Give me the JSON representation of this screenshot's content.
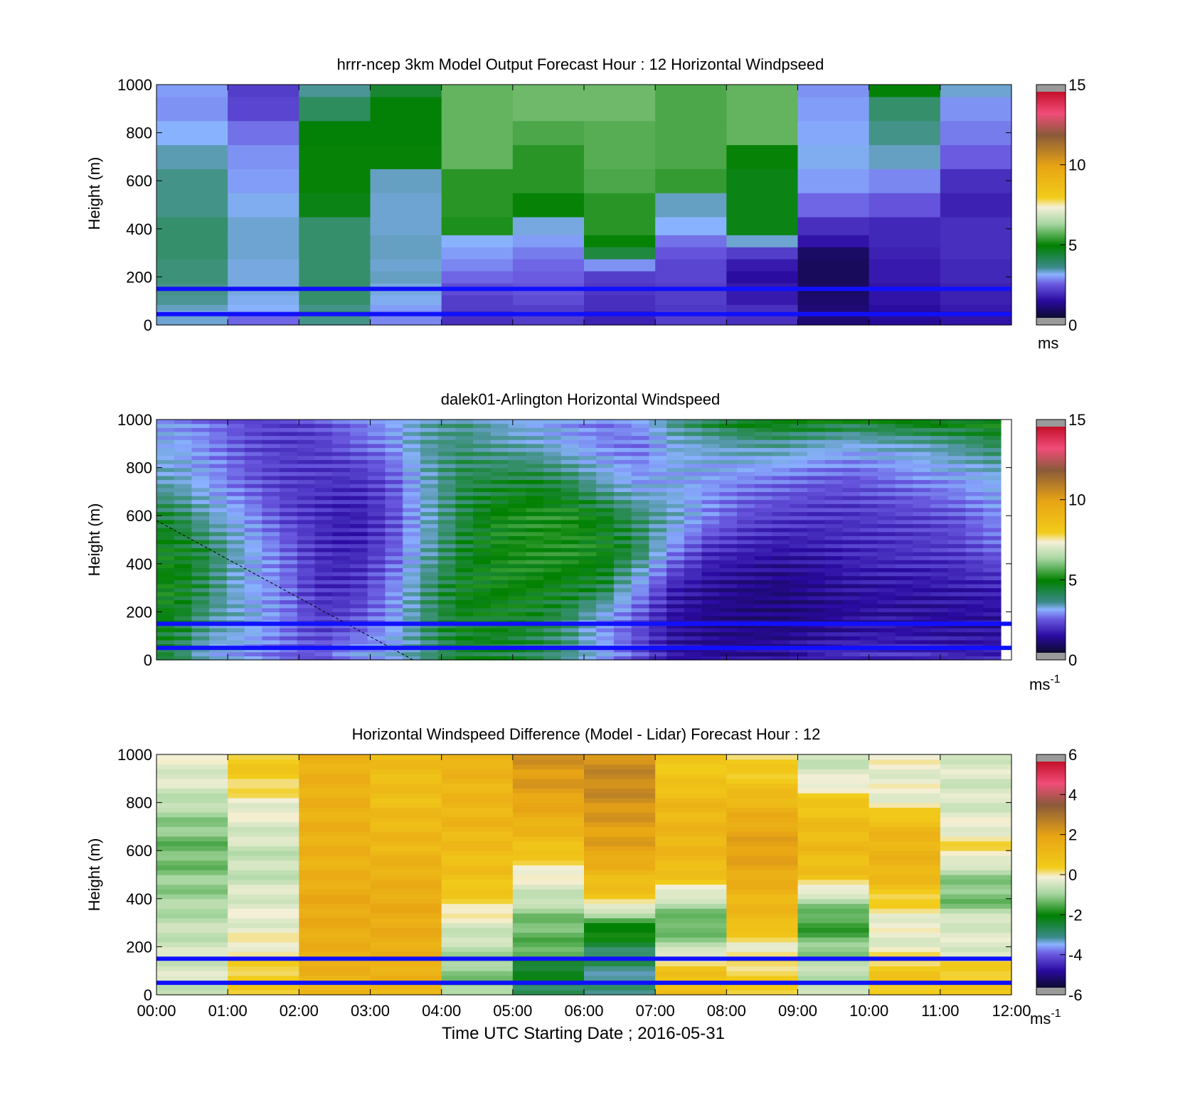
{
  "chart_data": [
    {
      "type": "heatmap",
      "title": "hrrr-ncep 3km Model Output   Forecast Hour : 12 Horizontal Windpseed",
      "ylabel": "Height (m)",
      "xlabel": "",
      "ylim": [
        0,
        1000
      ],
      "yticks": [
        "0",
        "200",
        "400",
        "600",
        "800",
        "1000"
      ],
      "x": [
        "00:00",
        "01:00",
        "02:00",
        "03:00",
        "04:00",
        "05:00",
        "06:00",
        "07:00",
        "08:00",
        "09:00",
        "10:00",
        "11:00"
      ],
      "y": [
        30,
        50,
        70,
        100,
        150,
        200,
        250,
        300,
        350,
        400,
        500,
        600,
        700,
        800,
        900,
        1000
      ],
      "z_units": "ms",
      "zlim": [
        0,
        15
      ],
      "colorbar_ticks": [
        "0",
        "5",
        "10",
        "15"
      ],
      "overlay_lines_y": [
        150,
        45
      ],
      "values": [
        [
          3.5,
          2.5,
          4.0,
          2.8,
          1.8,
          2.0,
          1.6,
          2.0,
          1.8,
          0.8,
          1.2,
          1.4
        ],
        [
          3.3,
          3.0,
          4.2,
          2.8,
          1.8,
          2.0,
          1.6,
          2.0,
          1.8,
          0.8,
          1.2,
          1.4
        ],
        [
          3.6,
          3.2,
          4.0,
          3.0,
          2.0,
          2.0,
          1.8,
          1.9,
          1.8,
          0.8,
          1.3,
          1.5
        ],
        [
          3.9,
          3.3,
          4.2,
          3.3,
          2.0,
          2.2,
          1.8,
          2.0,
          1.5,
          0.7,
          1.4,
          1.6
        ],
        [
          4.0,
          3.4,
          4.2,
          3.4,
          2.2,
          2.3,
          1.9,
          2.0,
          1.5,
          0.6,
          1.4,
          1.6
        ],
        [
          4.1,
          3.4,
          4.2,
          3.6,
          2.5,
          2.4,
          2.0,
          2.1,
          1.3,
          0.5,
          1.5,
          1.7
        ],
        [
          4.1,
          3.4,
          4.2,
          3.5,
          2.8,
          2.5,
          2.9,
          2.1,
          1.5,
          0.5,
          1.5,
          1.7
        ],
        [
          4.2,
          3.5,
          4.2,
          3.6,
          3.0,
          2.7,
          4.5,
          2.3,
          2.0,
          0.6,
          1.6,
          1.8
        ],
        [
          4.2,
          3.5,
          4.2,
          3.6,
          3.2,
          3.0,
          5.0,
          2.6,
          3.5,
          1.4,
          1.7,
          1.8
        ],
        [
          4.2,
          3.5,
          4.2,
          3.5,
          5.2,
          3.4,
          5.3,
          3.2,
          4.8,
          1.8,
          1.7,
          1.8
        ],
        [
          4.0,
          3.3,
          4.8,
          3.5,
          5.3,
          5.0,
          5.3,
          3.6,
          4.8,
          2.5,
          2.3,
          1.6
        ],
        [
          4.0,
          3.0,
          5.0,
          3.6,
          5.3,
          5.3,
          5.6,
          5.4,
          4.8,
          3.0,
          2.8,
          1.8
        ],
        [
          3.7,
          2.9,
          5.0,
          5.0,
          5.8,
          5.3,
          5.7,
          5.6,
          5.0,
          3.3,
          3.6,
          2.4
        ],
        [
          3.2,
          2.6,
          4.9,
          4.9,
          5.8,
          5.6,
          5.7,
          5.6,
          5.8,
          3.1,
          4.0,
          2.7
        ],
        [
          2.9,
          2.1,
          4.3,
          4.9,
          5.8,
          5.9,
          5.9,
          5.6,
          5.8,
          3.0,
          4.2,
          2.9
        ],
        [
          3.0,
          2.0,
          3.9,
          4.6,
          5.8,
          5.9,
          5.9,
          5.6,
          5.8,
          2.9,
          4.9,
          3.5
        ]
      ]
    },
    {
      "type": "heatmap",
      "title": "dalek01-Arlington  Horizontal Windspeed",
      "ylabel": "Height (m)",
      "xlabel": "",
      "ylim": [
        0,
        1000
      ],
      "yticks": [
        "0",
        "200",
        "400",
        "600",
        "800",
        "1000"
      ],
      "x_range_hours": [
        0,
        12
      ],
      "z_units": "ms",
      "z_units_exponent": "-1",
      "zlim": [
        0,
        15
      ],
      "colorbar_ticks": [
        "0",
        "5",
        "10",
        "15"
      ],
      "overlay_lines_y": [
        150,
        50
      ],
      "dashed_line": {
        "x_hours": [
          0,
          3.6
        ],
        "y": [
          580,
          0
        ]
      },
      "values": {
        "profile_times": [
          0.25,
          0.75,
          1.25,
          1.75,
          2.25,
          2.75,
          3.25,
          3.75,
          4.25,
          4.75,
          5.25,
          5.75,
          6.25,
          6.75,
          7.25,
          7.75,
          8.25,
          8.75,
          9.25,
          9.75,
          10.25,
          10.75,
          11.25,
          11.75
        ],
        "height_levels": [
          25,
          150,
          300,
          450,
          600,
          750,
          900,
          1000
        ],
        "speed": [
          [
            4.5,
            3.3,
            3.0,
            2.5,
            2.2,
            3.0,
            3.2,
            4.0,
            4.6,
            4.6,
            4.4,
            4.0,
            3.2,
            2.3,
            1.4,
            1.2,
            1.2,
            1.2,
            1.6,
            1.8,
            1.8,
            1.8,
            1.6,
            1.6
          ],
          [
            4.8,
            3.8,
            3.5,
            2.8,
            2.0,
            2.2,
            2.9,
            4.1,
            4.8,
            4.8,
            4.6,
            4.2,
            3.0,
            2.2,
            1.3,
            1.0,
            0.9,
            0.9,
            1.0,
            1.2,
            1.3,
            1.2,
            1.2,
            1.2
          ],
          [
            5.0,
            4.2,
            3.2,
            2.8,
            1.8,
            1.8,
            2.6,
            4.0,
            4.8,
            5.0,
            5.0,
            4.8,
            4.6,
            3.0,
            1.6,
            1.2,
            1.0,
            0.9,
            1.1,
            1.3,
            1.4,
            1.4,
            1.5,
            1.6
          ],
          [
            4.9,
            4.4,
            3.4,
            2.6,
            1.8,
            1.6,
            2.2,
            3.6,
            4.6,
            5.0,
            5.2,
            5.2,
            5.0,
            4.4,
            2.8,
            1.8,
            1.6,
            1.4,
            1.5,
            1.7,
            1.8,
            1.9,
            2.0,
            2.4
          ],
          [
            4.5,
            3.6,
            3.0,
            2.2,
            1.8,
            1.5,
            2.0,
            3.4,
            4.4,
            5.0,
            5.2,
            5.2,
            4.8,
            4.2,
            3.6,
            2.8,
            2.2,
            2.0,
            1.9,
            1.9,
            2.0,
            2.1,
            2.3,
            2.8
          ],
          [
            3.6,
            3.0,
            2.4,
            2.0,
            1.9,
            1.8,
            2.2,
            3.5,
            4.4,
            4.5,
            4.6,
            4.3,
            3.6,
            3.0,
            3.2,
            3.0,
            2.8,
            2.6,
            2.4,
            2.3,
            2.5,
            2.8,
            3.0,
            3.3
          ],
          [
            3.2,
            2.8,
            2.2,
            2.0,
            2.0,
            2.4,
            2.8,
            3.8,
            4.1,
            3.8,
            3.6,
            3.2,
            2.8,
            2.6,
            3.4,
            3.6,
            3.8,
            3.9,
            3.6,
            3.4,
            3.6,
            3.7,
            4.0,
            4.3
          ],
          [
            3.0,
            2.6,
            2.2,
            2.0,
            2.2,
            2.6,
            3.0,
            3.6,
            4.0,
            3.6,
            3.2,
            3.0,
            2.6,
            3.0,
            4.0,
            4.6,
            5.0,
            5.0,
            5.0,
            4.8,
            4.9,
            5.0,
            5.0,
            5.2
          ]
        ]
      }
    },
    {
      "type": "heatmap",
      "title": "Horizontal Windspeed Difference (Model - Lidar) Forecast Hour : 12",
      "ylabel": "Height (m)",
      "xlabel": "Time UTC  Starting Date ; 2016-05-31",
      "ylim": [
        0,
        1000
      ],
      "yticks": [
        "0",
        "200",
        "400",
        "600",
        "800",
        "1000"
      ],
      "xticks": [
        "00:00",
        "01:00",
        "02:00",
        "03:00",
        "04:00",
        "05:00",
        "06:00",
        "07:00",
        "08:00",
        "09:00",
        "10:00",
        "11:00",
        "12:00"
      ],
      "z_units": "ms",
      "z_units_exponent": "-1",
      "zlim": [
        -6,
        6
      ],
      "colorbar_ticks": [
        "-6",
        "-4",
        "-2",
        "0",
        "2",
        "4",
        "6"
      ],
      "overlay_lines_y": [
        150,
        50
      ],
      "values": {
        "hours": [
          "00:00",
          "01:00",
          "02:00",
          "03:00",
          "04:00",
          "05:00",
          "06:00",
          "07:00",
          "08:00",
          "09:00",
          "10:00",
          "11:00"
        ],
        "height_levels": [
          0,
          100,
          200,
          300,
          400,
          500,
          600,
          700,
          800,
          900,
          1000
        ],
        "diff": [
          [
            -0.8,
            0.3,
            1.0,
            1.2,
            -1.2,
            -2.6,
            -3.0,
            0.8,
            0.4,
            -0.9,
            0.4,
            0.3
          ],
          [
            -0.6,
            0.3,
            1.3,
            1.3,
            -1.4,
            -2.6,
            -3.0,
            0.6,
            0.2,
            -0.9,
            0.5,
            0.4
          ],
          [
            -0.7,
            -0.2,
            1.4,
            1.4,
            -0.9,
            -1.6,
            -2.6,
            -1.0,
            -0.3,
            -1.4,
            -0.4,
            -0.6
          ],
          [
            -0.9,
            -0.4,
            1.5,
            1.5,
            -0.5,
            -1.6,
            -2.0,
            -1.8,
            0.9,
            -2.0,
            -0.4,
            -0.5
          ],
          [
            -1.2,
            -0.5,
            1.6,
            1.5,
            0.3,
            -0.8,
            0.4,
            -0.8,
            1.1,
            -1.0,
            0.2,
            -1.6
          ],
          [
            -1.4,
            -0.8,
            1.3,
            1.3,
            0.7,
            -0.3,
            1.0,
            0.7,
            1.5,
            0.7,
            1.1,
            -1.2
          ],
          [
            -1.6,
            -0.8,
            1.3,
            1.1,
            0.8,
            0.6,
            1.8,
            1.1,
            1.9,
            0.9,
            1.2,
            0.1
          ],
          [
            -1.4,
            -0.5,
            1.3,
            1.0,
            1.1,
            1.2,
            1.9,
            1.1,
            1.6,
            0.9,
            1.0,
            -0.4
          ],
          [
            -0.9,
            -0.3,
            1.3,
            0.8,
            1.1,
            1.7,
            2.2,
            1.0,
            1.1,
            0.5,
            -0.3,
            -0.6
          ],
          [
            -0.5,
            0.3,
            1.3,
            0.8,
            1.1,
            2.0,
            2.4,
            0.5,
            0.4,
            -0.5,
            -0.4,
            -0.6
          ],
          [
            -0.4,
            0.4,
            1.2,
            0.9,
            1.3,
            2.1,
            2.2,
            0.4,
            0.2,
            -0.8,
            -0.3,
            -0.5
          ]
        ]
      }
    }
  ]
}
